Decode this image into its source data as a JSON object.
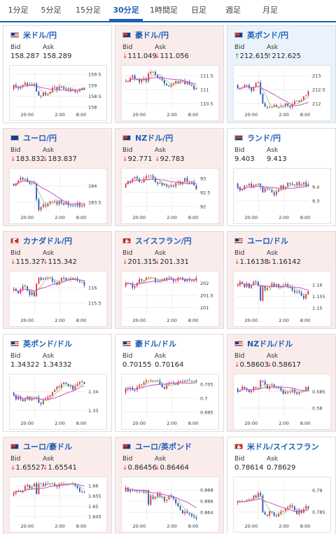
{
  "tabs": [
    {
      "label": "1分足",
      "active": false
    },
    {
      "label": "5分足",
      "active": false
    },
    {
      "label": "15分足",
      "active": false
    },
    {
      "label": "30分足",
      "active": true
    },
    {
      "label": "1時間足",
      "active": false
    },
    {
      "label": "日足",
      "active": false
    },
    {
      "label": "週足",
      "active": false
    },
    {
      "label": "月足",
      "active": false
    }
  ],
  "bid_label": "Bid",
  "ask_label": "Ask",
  "x_ticks": [
    "20:00",
    "2:00",
    "8:00"
  ],
  "cards": [
    {
      "pair": "米ドル/円",
      "flag": "us",
      "trend": "flat",
      "bid": "158.287",
      "ask": "158.289",
      "y_ticks": [
        "159.5",
        "159",
        "158.5",
        "158"
      ],
      "ylim": [
        157.9,
        159.7
      ],
      "seed": 3
    },
    {
      "pair": "豪ドル/円",
      "flag": "au",
      "trend": "down",
      "bid": "111.049",
      "ask": "111.056",
      "y_ticks": [
        "111.5",
        "111",
        "110.5"
      ],
      "ylim": [
        110.3,
        111.7
      ],
      "seed": 5
    },
    {
      "pair": "英ポンド/円",
      "flag": "uk",
      "trend": "up",
      "bid": "212.615",
      "ask": "212.625",
      "y_ticks": [
        "213",
        "212.5",
        "212"
      ],
      "ylim": [
        211.8,
        213.2
      ],
      "seed": 7
    },
    {
      "pair": "ユーロ/円",
      "flag": "eu",
      "trend": "down",
      "bid": "183.832",
      "ask": "183.837",
      "y_ticks": [
        "184",
        "183.5"
      ],
      "ylim": [
        183.2,
        184.4
      ],
      "seed": 11
    },
    {
      "pair": "NZドル/円",
      "flag": "nz",
      "trend": "down",
      "bid": "92.771",
      "ask": "92.783",
      "y_ticks": [
        "93",
        "92.5",
        "92"
      ],
      "ylim": [
        91.8,
        93.2
      ],
      "seed": 13
    },
    {
      "pair": "ランド/円",
      "flag": "za",
      "trend": "flat",
      "bid": "9.403",
      "ask": "9.413",
      "y_ticks": [
        "9.4",
        "9.3"
      ],
      "ylim": [
        9.22,
        9.5
      ],
      "seed": 17
    },
    {
      "pair": "カナダドル/円",
      "flag": "ca",
      "trend": "down",
      "bid": "115.327",
      "ask": "115.342",
      "y_ticks": [
        "116",
        "115.5"
      ],
      "ylim": [
        115.1,
        116.4
      ],
      "seed": 19
    },
    {
      "pair": "スイスフラン/円",
      "flag": "ch",
      "trend": "down",
      "bid": "201.315",
      "ask": "201.331",
      "y_ticks": [
        "202",
        "201.5",
        "201"
      ],
      "ylim": [
        200.7,
        202.3
      ],
      "seed": 23
    },
    {
      "pair": "ユーロ/ドル",
      "flag": "us",
      "trend": "down",
      "bid": "1.16138",
      "ask": "1.16142",
      "y_ticks": [
        "1.16",
        "1.155",
        "1.15"
      ],
      "ylim": [
        1.147,
        1.164
      ],
      "seed": 29
    },
    {
      "pair": "英ポンド/ドル",
      "flag": "us",
      "trend": "flat",
      "bid": "1.34322",
      "ask": "1.34332",
      "y_ticks": [
        "1.34",
        "1.33"
      ],
      "ylim": [
        1.326,
        1.347
      ],
      "seed": 31
    },
    {
      "pair": "豪ドル/ドル",
      "flag": "us",
      "trend": "flat",
      "bid": "0.70155",
      "ask": "0.70164",
      "y_ticks": [
        "0.705",
        "0.7",
        "0.695"
      ],
      "ylim": [
        0.693,
        0.707
      ],
      "seed": 37
    },
    {
      "pair": "NZドル/ドル",
      "flag": "us",
      "trend": "down",
      "bid": "0.58603",
      "ask": "0.58617",
      "y_ticks": [
        "0.585",
        "0.58"
      ],
      "ylim": [
        0.577,
        0.589
      ],
      "seed": 41
    },
    {
      "pair": "ユーロ/豪ドル",
      "flag": "au",
      "trend": "down",
      "bid": "1.65527",
      "ask": "1.65541",
      "y_ticks": [
        "1.66",
        "1.655",
        "1.65",
        "1.645"
      ],
      "ylim": [
        1.643,
        1.662
      ],
      "seed": 43
    },
    {
      "pair": "ユーロ/英ポンド",
      "flag": "uk",
      "trend": "down",
      "bid": "0.86456",
      "ask": "0.86464",
      "y_ticks": [
        "0.868",
        "0.866",
        "0.864"
      ],
      "ylim": [
        0.8625,
        0.8695
      ],
      "seed": 47
    },
    {
      "pair": "米ドル/スイスフラン",
      "flag": "ch",
      "trend": "flat",
      "bid": "0.78614",
      "ask": "0.78629",
      "y_ticks": [
        "0.79",
        "0.785"
      ],
      "ylim": [
        0.783,
        0.792
      ],
      "seed": 53
    }
  ],
  "arrows": [
    "",
    "down",
    "up",
    "down",
    "down",
    "",
    "down",
    "down",
    "down",
    "",
    "",
    "down",
    "down",
    "down",
    ""
  ]
}
